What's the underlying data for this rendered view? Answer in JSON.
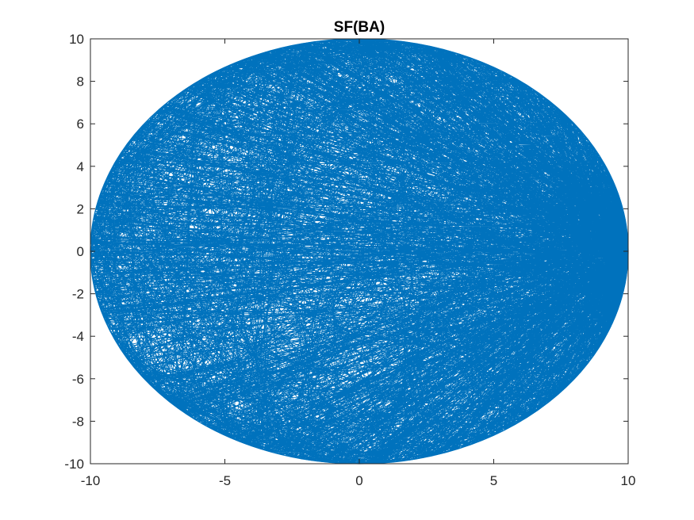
{
  "chart_data": {
    "type": "line",
    "title": "SF(BA)",
    "xlabel": "",
    "ylabel": "",
    "xlim": [
      -10,
      10
    ],
    "ylim": [
      -10,
      10
    ],
    "x_ticks": [
      "-10",
      "-5",
      "0",
      "5",
      "10"
    ],
    "y_ticks": [
      "10",
      "8",
      "6",
      "4",
      "2",
      "0",
      "-2",
      "-4",
      "-6",
      "-8",
      "-10"
    ],
    "grid": false,
    "legend": "none",
    "series": [
      {
        "color": "#0072BD",
        "description": "Network edges drawn as chords between nodes placed on a circle of radius 10 centered at the origin; nodes crowd near (10, 0).",
        "circle_center": [
          0,
          0
        ],
        "circle_radius": 10,
        "hub_point": [
          10,
          0
        ]
      }
    ]
  },
  "colors": {
    "line": "#0072BD",
    "axes": "#262626",
    "background": "#ffffff"
  }
}
